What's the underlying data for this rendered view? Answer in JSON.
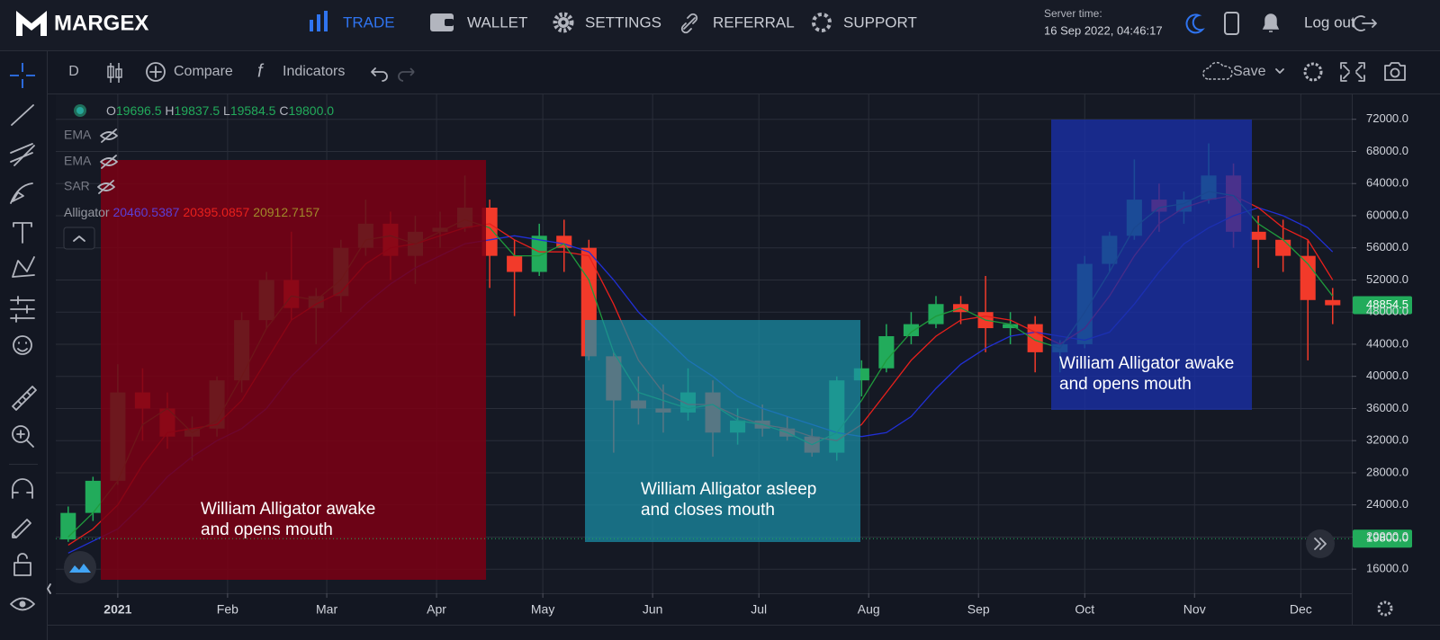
{
  "header": {
    "logo": "MARGEX",
    "nav": [
      "TRADE",
      "WALLET",
      "SETTINGS",
      "REFERRAL",
      "SUPPORT"
    ],
    "server_time_label": "Server time:",
    "server_time": "16 Sep 2022, 04:46:17",
    "logout": "Log out"
  },
  "toolbar": {
    "interval": "D",
    "compare": "Compare",
    "indicators": "Indicators",
    "save": "Save"
  },
  "legend": {
    "ohlc": [
      {
        "label": "O",
        "value": "19696.5"
      },
      {
        "label": "H",
        "value": "19837.5"
      },
      {
        "label": "L",
        "value": "19584.5"
      },
      {
        "label": "C",
        "value": "19800.0"
      }
    ],
    "indicators": [
      {
        "name": "EMA"
      },
      {
        "name": "EMA"
      },
      {
        "name": "SAR"
      },
      {
        "name": "Alligator",
        "values": [
          "20460.5387",
          "20395.0857",
          "20912.7157"
        ]
      }
    ]
  },
  "annotations": [
    {
      "lines": [
        "William Alligator awake",
        "and opens mouth"
      ]
    },
    {
      "lines": [
        "William Alligator asleep",
        "and closes mouth"
      ]
    },
    {
      "lines": [
        "William Alligator awake",
        "and opens mouth"
      ]
    }
  ],
  "chart_data": {
    "type": "candlestick",
    "x": [
      -14,
      -7,
      0,
      7,
      14,
      21,
      28,
      35,
      42,
      49,
      56,
      63,
      70,
      77,
      84,
      91,
      98,
      105,
      112,
      119,
      126,
      133,
      140,
      147,
      154,
      161,
      168,
      175,
      182,
      189,
      196,
      203,
      210,
      217,
      224,
      231,
      238,
      245,
      252,
      259,
      266,
      273,
      280,
      287,
      294,
      301,
      308,
      315,
      322,
      329,
      336,
      343
    ],
    "open": [
      19700,
      23000,
      27000,
      38000,
      36000,
      32500,
      33500,
      39500,
      47000,
      52000,
      48500,
      50000,
      56000,
      59000,
      55000,
      58000,
      58500,
      61000,
      55000,
      53000,
      57500,
      56000,
      42500,
      37000,
      36000,
      35500,
      38000,
      33000,
      34500,
      33500,
      32500,
      30500,
      39500,
      41000,
      45000,
      46500,
      49000,
      48000,
      46000,
      46500,
      43000,
      44000,
      54000,
      57500,
      62000,
      60500,
      62000,
      65000,
      58000,
      57000,
      55000,
      49500
    ],
    "high": [
      23800,
      27500,
      41500,
      41000,
      38000,
      35000,
      40000,
      48000,
      53000,
      58000,
      51000,
      57000,
      62000,
      60500,
      60000,
      60500,
      65000,
      62000,
      57000,
      59000,
      59500,
      57000,
      43000,
      40000,
      39000,
      41000,
      39500,
      36000,
      36500,
      35000,
      33500,
      40000,
      42000,
      46500,
      48000,
      50000,
      50000,
      52500,
      48000,
      47500,
      44500,
      55000,
      58000,
      67000,
      64000,
      63000,
      69000,
      66500,
      60000,
      59500,
      57000,
      51000
    ],
    "low": [
      19400,
      22000,
      26500,
      32000,
      31000,
      29500,
      32500,
      38000,
      46000,
      47000,
      44000,
      48000,
      55000,
      52000,
      51500,
      56000,
      58000,
      51000,
      47500,
      52500,
      53000,
      42000,
      30500,
      34000,
      33000,
      34500,
      30000,
      31500,
      32500,
      32000,
      30000,
      29500,
      37500,
      40500,
      44000,
      46000,
      46500,
      43000,
      44000,
      40500,
      40500,
      43500,
      53000,
      57000,
      58000,
      59000,
      61500,
      56000,
      53500,
      53000,
      42000,
      46500
    ],
    "close": [
      23000,
      27000,
      38000,
      36000,
      32500,
      33500,
      39500,
      47000,
      52000,
      48500,
      50000,
      56000,
      59000,
      55000,
      58000,
      58500,
      61000,
      55000,
      53000,
      57500,
      56000,
      42500,
      37000,
      36000,
      35500,
      38000,
      33000,
      34500,
      33500,
      32500,
      30500,
      39500,
      41000,
      45000,
      46500,
      49000,
      48000,
      46000,
      46500,
      43000,
      44000,
      54000,
      57500,
      62000,
      60500,
      62000,
      65000,
      58000,
      57000,
      55000,
      49500,
      48854.5
    ],
    "up_color": "#22ab5b",
    "down_color": "#f23a2a",
    "lines": [
      {
        "color": "#2130d6",
        "values": [
          18000,
          19500,
          21000,
          24000,
          27500,
          30000,
          32000,
          33500,
          36000,
          40000,
          43000,
          46000,
          49000,
          51500,
          53500,
          55000,
          56500,
          57000,
          57500,
          57000,
          56500,
          55500,
          52000,
          48000,
          45000,
          42000,
          40000,
          37500,
          36000,
          35000,
          34000,
          33000,
          32500,
          33000,
          35000,
          38500,
          41500,
          43500,
          45000,
          45500,
          45000,
          44500,
          45500,
          49000,
          53000,
          56500,
          58500,
          60000,
          61000,
          60000,
          58500,
          55500
        ]
      },
      {
        "color": "#e8201c",
        "values": [
          19000,
          21000,
          24000,
          29000,
          33000,
          33500,
          34000,
          37000,
          42000,
          47000,
          49000,
          50500,
          54000,
          56000,
          56500,
          57500,
          58500,
          59000,
          57000,
          55500,
          55500,
          55000,
          49000,
          42000,
          38000,
          36500,
          36500,
          35000,
          34000,
          33500,
          32500,
          32000,
          34000,
          38000,
          42000,
          45000,
          47000,
          47500,
          47000,
          45500,
          44000,
          46000,
          50000,
          55000,
          59000,
          61000,
          62000,
          62500,
          61000,
          58500,
          57000,
          52000
        ]
      },
      {
        "color": "#1f9a3c",
        "values": [
          20000,
          23000,
          27000,
          34000,
          36000,
          33000,
          34500,
          40000,
          46000,
          50000,
          49500,
          52000,
          57000,
          57500,
          56500,
          58000,
          59500,
          58500,
          55000,
          55000,
          56500,
          52000,
          43000,
          38000,
          37000,
          36000,
          36500,
          34500,
          34000,
          33000,
          31500,
          33000,
          37000,
          42000,
          45500,
          47500,
          48500,
          47000,
          46500,
          44500,
          43500,
          48000,
          53000,
          58500,
          61000,
          61500,
          63000,
          62500,
          59000,
          57000,
          54000,
          50000
        ]
      }
    ],
    "price_markers": [
      {
        "value": 48854.5,
        "label": "48854.5"
      },
      {
        "value": 19800,
        "label": "19800.0"
      }
    ],
    "xlim": [
      -17.5,
      348.4
    ],
    "xticks": [
      {
        "value": 0,
        "label": "2021"
      },
      {
        "value": 31,
        "label": "Feb"
      },
      {
        "value": 59,
        "label": "Mar"
      },
      {
        "value": 90,
        "label": "Apr"
      },
      {
        "value": 120,
        "label": "May"
      },
      {
        "value": 151,
        "label": "Jun"
      },
      {
        "value": 181,
        "label": "Jul"
      },
      {
        "value": 212,
        "label": "Aug"
      },
      {
        "value": 243,
        "label": "Sep"
      },
      {
        "value": 273,
        "label": "Oct"
      },
      {
        "value": 304,
        "label": "Nov"
      },
      {
        "value": 334,
        "label": "Dec"
      }
    ],
    "ylim": [
      13000,
      75100
    ],
    "yticks": [
      {
        "value": 16000,
        "label": "16000.0"
      },
      {
        "value": 20000,
        "label": "20000.0"
      },
      {
        "value": 24000,
        "label": "24000.0"
      },
      {
        "value": 28000,
        "label": "28000.0"
      },
      {
        "value": 32000,
        "label": "32000.0"
      },
      {
        "value": 36000,
        "label": "36000.0"
      },
      {
        "value": 40000,
        "label": "40000.0"
      },
      {
        "value": 44000,
        "label": "44000.0"
      },
      {
        "value": 48000,
        "label": "48000.0"
      },
      {
        "value": 52000,
        "label": "52000.0"
      },
      {
        "value": 56000,
        "label": "56000.0"
      },
      {
        "value": 60000,
        "label": "60000.0"
      },
      {
        "value": 64000,
        "label": "64000.0"
      },
      {
        "value": 68000,
        "label": "68000.0"
      },
      {
        "value": 72000,
        "label": "72000.0"
      }
    ],
    "grid": true
  }
}
